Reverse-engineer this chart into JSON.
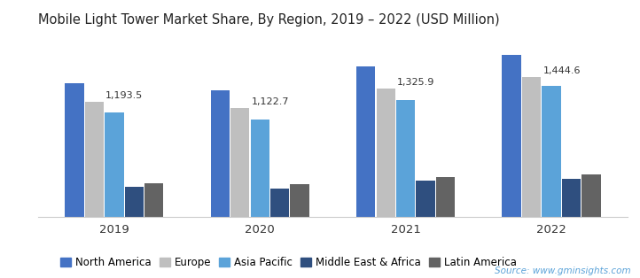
{
  "title": "Mobile Light Tower Market Share, By Region, 2019 – 2022 (USD Million)",
  "years": [
    "2019",
    "2020",
    "2021",
    "2022"
  ],
  "regions": [
    "North America",
    "Europe",
    "Asia Pacific",
    "Middle East & Africa",
    "Latin America"
  ],
  "values": {
    "North America": [
      1380,
      1310,
      1560,
      1680
    ],
    "Europe": [
      1193.5,
      1122.7,
      1325.9,
      1444.6
    ],
    "Asia Pacific": [
      1080,
      1010,
      1210,
      1360
    ],
    "Middle East & Africa": [
      310,
      295,
      375,
      395
    ],
    "Latin America": [
      350,
      340,
      415,
      440
    ]
  },
  "colors": {
    "North America": "#4472C4",
    "Europe": "#BFBFBF",
    "Asia Pacific": "#5BA3D9",
    "Middle East & Africa": "#2F4F7F",
    "Latin America": "#636363"
  },
  "ann_vals": [
    1193.5,
    1122.7,
    1325.9,
    1444.6
  ],
  "source_text": "Source: www.gminsights.com",
  "ylim": [
    0,
    1900
  ],
  "bar_width": 0.13,
  "background_color": "#ffffff",
  "title_fontsize": 10.5,
  "legend_fontsize": 8.5,
  "tick_fontsize": 9.5,
  "annotation_fontsize": 8
}
